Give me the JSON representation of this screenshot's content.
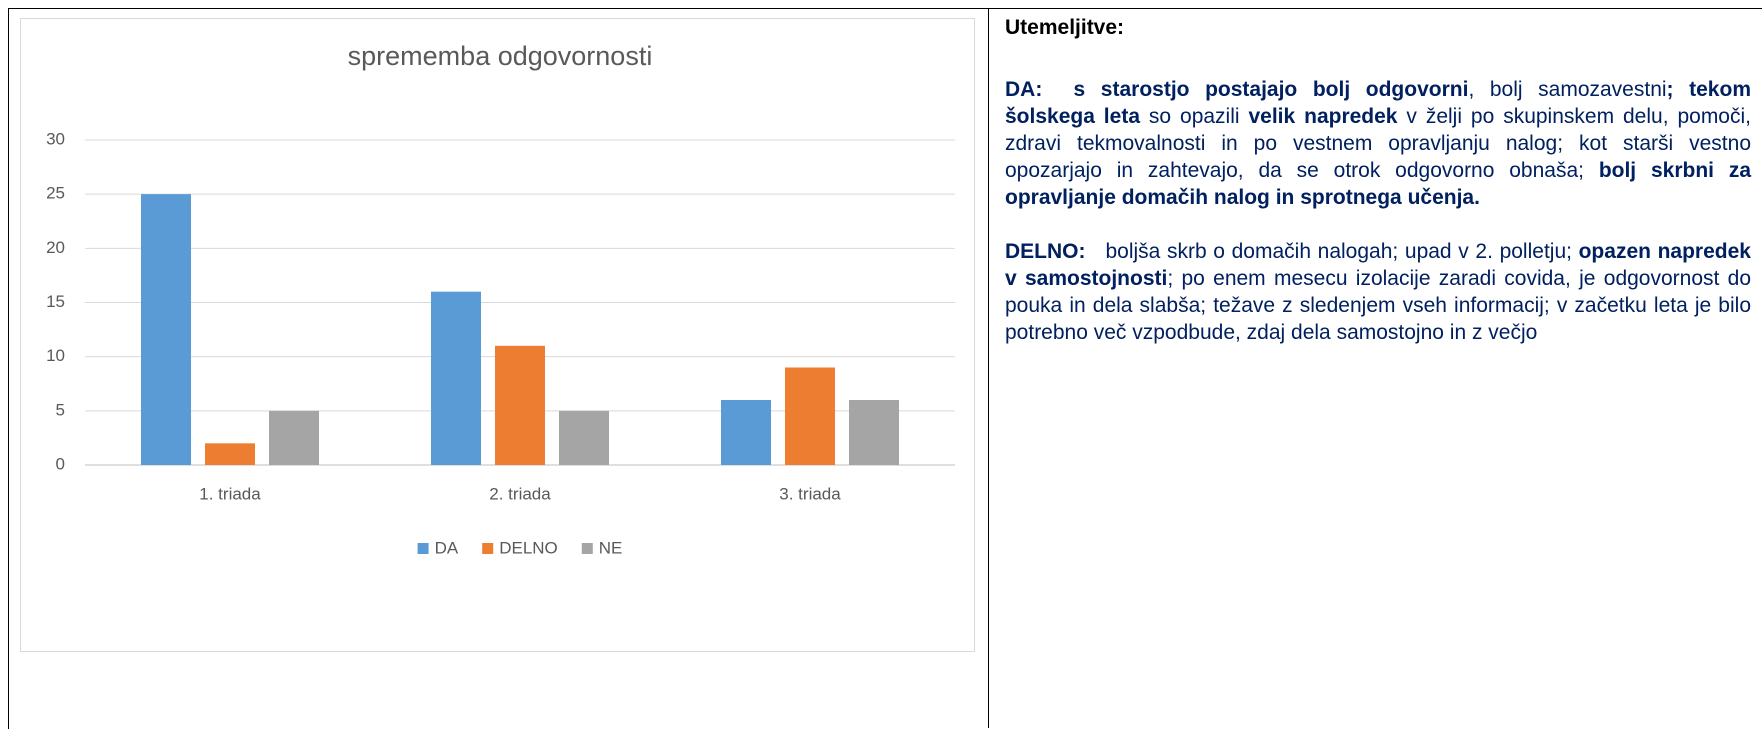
{
  "chart_data": {
    "type": "bar",
    "title": "sprememba odgovornosti",
    "categories": [
      "1. triada",
      "2. triada",
      "3. triada"
    ],
    "series": [
      {
        "name": "DA",
        "color": "#5b9bd5",
        "values": [
          25,
          16,
          6
        ]
      },
      {
        "name": "DELNO",
        "color": "#ed7d31",
        "values": [
          2,
          11,
          9
        ]
      },
      {
        "name": "NE",
        "color": "#a5a5a5",
        "values": [
          5,
          5,
          6
        ]
      }
    ],
    "ylim": [
      0,
      30
    ],
    "yticks": [
      0,
      5,
      10,
      15,
      20,
      25,
      30
    ],
    "grid": true,
    "legend": "bottom"
  },
  "text": {
    "heading": "Utemeljitve:",
    "paragraphs": [
      {
        "runs": [
          {
            "text": "DA:  s starostjo postajajo bolj odgovorni",
            "bold": true
          },
          {
            "text": ", bolj samozavestni",
            "bold": false
          },
          {
            "text": "; tekom šolskega leta",
            "bold": true
          },
          {
            "text": " so opazili ",
            "bold": false
          },
          {
            "text": "velik napredek",
            "bold": true
          },
          {
            "text": " v želji po skupinskem delu, pomoči, zdravi tekmovalnosti in po vestnem opravljanju nalog; kot starši vestno opozarjajo in zahtevajo, da se otrok odgovorno obnaša; ",
            "bold": false
          },
          {
            "text": "bolj skrbni za opravljanje domačih nalog in sprotnega učenja.",
            "bold": true
          }
        ]
      },
      {
        "runs": [
          {
            "text": "DELNO:",
            "bold": true
          },
          {
            "text": "   boljša skrb o domačih nalogah; upad v 2. polletju; ",
            "bold": false
          },
          {
            "text": "opazen napredek v samostojnosti",
            "bold": true
          },
          {
            "text": "; po enem mesecu izolacije zaradi covida, je odgovornost do pouka in dela slabša; težave z sledenjem vseh informacij; v začetku leta je bilo potrebno več vzpodbude, zdaj dela samostojno in z večjo",
            "bold": false
          }
        ]
      }
    ]
  }
}
